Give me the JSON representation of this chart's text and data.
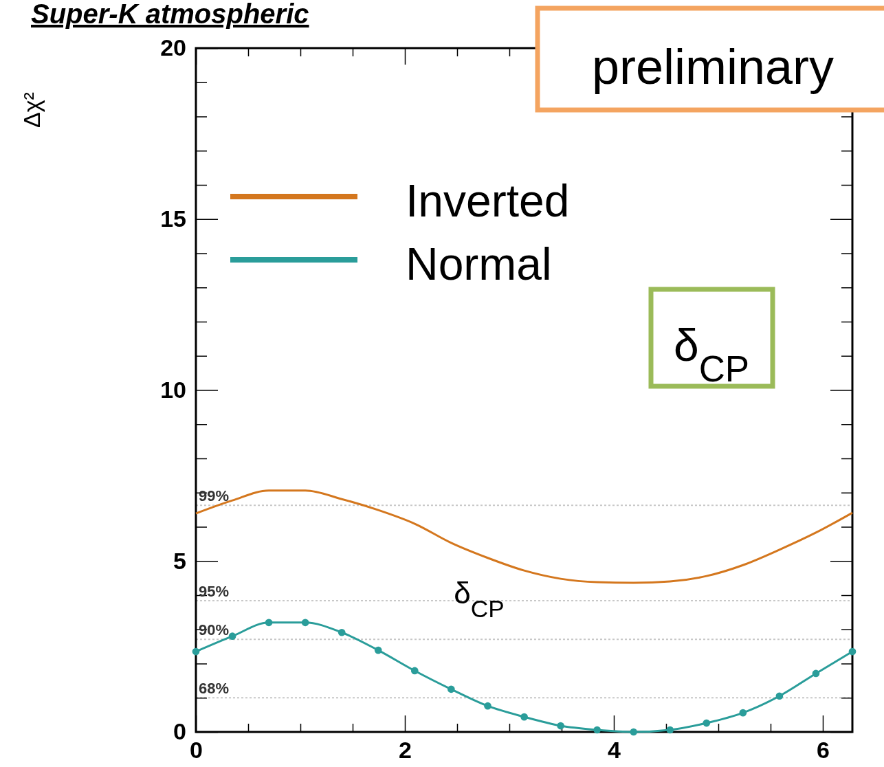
{
  "chart_data": {
    "type": "line",
    "title": "Super-K atmospheric",
    "ylabel": "Δχ²",
    "annotations": [
      "preliminary",
      "δ$_{CP}$",
      "δ$_{CP}$",
      {
        "text": "99%",
        "y": 6.63
      },
      {
        "text": "95%",
        "y": 3.84
      },
      {
        "text": "90%",
        "y": 2.71
      },
      {
        "text": "68%",
        "y": 1.0
      }
    ],
    "xlim": [
      0,
      6.283
    ],
    "xticks": [
      0,
      {
        "value": 0.5,
        "label": null
      },
      {
        "value": 1,
        "label": null
      },
      {
        "value": 1.5,
        "label": null
      },
      2,
      {
        "value": 2.5,
        "label": null
      },
      {
        "value": 3,
        "label": null
      },
      {
        "value": 3.5,
        "label": null
      },
      4,
      {
        "value": 4.5,
        "label": null
      },
      {
        "value": 5,
        "label": null
      },
      {
        "value": 5.5,
        "label": null
      },
      6
    ],
    "ylim": [
      0,
      20
    ],
    "yticks": [
      0,
      {
        "value": 1,
        "label": null
      },
      {
        "value": 2,
        "label": null
      },
      {
        "value": 3,
        "label": null
      },
      {
        "value": 4,
        "label": null
      },
      5,
      {
        "value": 6,
        "label": null
      },
      {
        "value": 7,
        "label": null
      },
      {
        "value": 8,
        "label": null
      },
      {
        "value": 9,
        "label": null
      },
      10,
      {
        "value": 11,
        "label": null
      },
      {
        "value": 12,
        "label": null
      },
      {
        "value": 13,
        "label": null
      },
      {
        "value": 14,
        "label": null
      },
      15,
      {
        "value": 16,
        "label": null
      },
      {
        "value": 17,
        "label": null
      },
      {
        "value": 18,
        "label": null
      },
      {
        "value": 19,
        "label": null
      },
      20
    ],
    "x": [
      0,
      0.349,
      0.698,
      1.047,
      1.396,
      1.745,
      2.094,
      2.443,
      2.793,
      3.142,
      3.491,
      3.84,
      4.189,
      4.538,
      4.887,
      5.236,
      5.585,
      5.934,
      6.283
    ],
    "series": [
      {
        "name": "Inverted",
        "color": "#d4771e",
        "marker": "none",
        "values": [
          6.39,
          6.77,
          7.06,
          7.06,
          6.81,
          6.49,
          6.09,
          5.53,
          5.09,
          4.72,
          4.48,
          4.38,
          4.36,
          4.4,
          4.56,
          4.88,
          5.33,
          5.83,
          6.41
        ]
      },
      {
        "name": "Normal",
        "color": "#2a9d9a",
        "marker": "circle",
        "values": [
          2.35,
          2.8,
          3.2,
          3.2,
          2.91,
          2.39,
          1.79,
          1.25,
          0.76,
          0.44,
          0.18,
          0.06,
          0,
          0.06,
          0.26,
          0.56,
          1.05,
          1.71,
          2.35
        ]
      }
    ],
    "ref_lines": [
      {
        "axis": "y",
        "value": 6.63,
        "color": "#c8c8c8",
        "line_style": "dotted"
      },
      {
        "axis": "y",
        "value": 3.84,
        "color": "#c8c8c8",
        "line_style": "dotted"
      },
      {
        "axis": "y",
        "value": 2.71,
        "color": "#c8c8c8",
        "line_style": "dotted"
      },
      {
        "axis": "y",
        "value": 1.0,
        "color": "#c8c8c8",
        "line_style": "dotted"
      }
    ],
    "legend": "top left",
    "grid": false
  }
}
